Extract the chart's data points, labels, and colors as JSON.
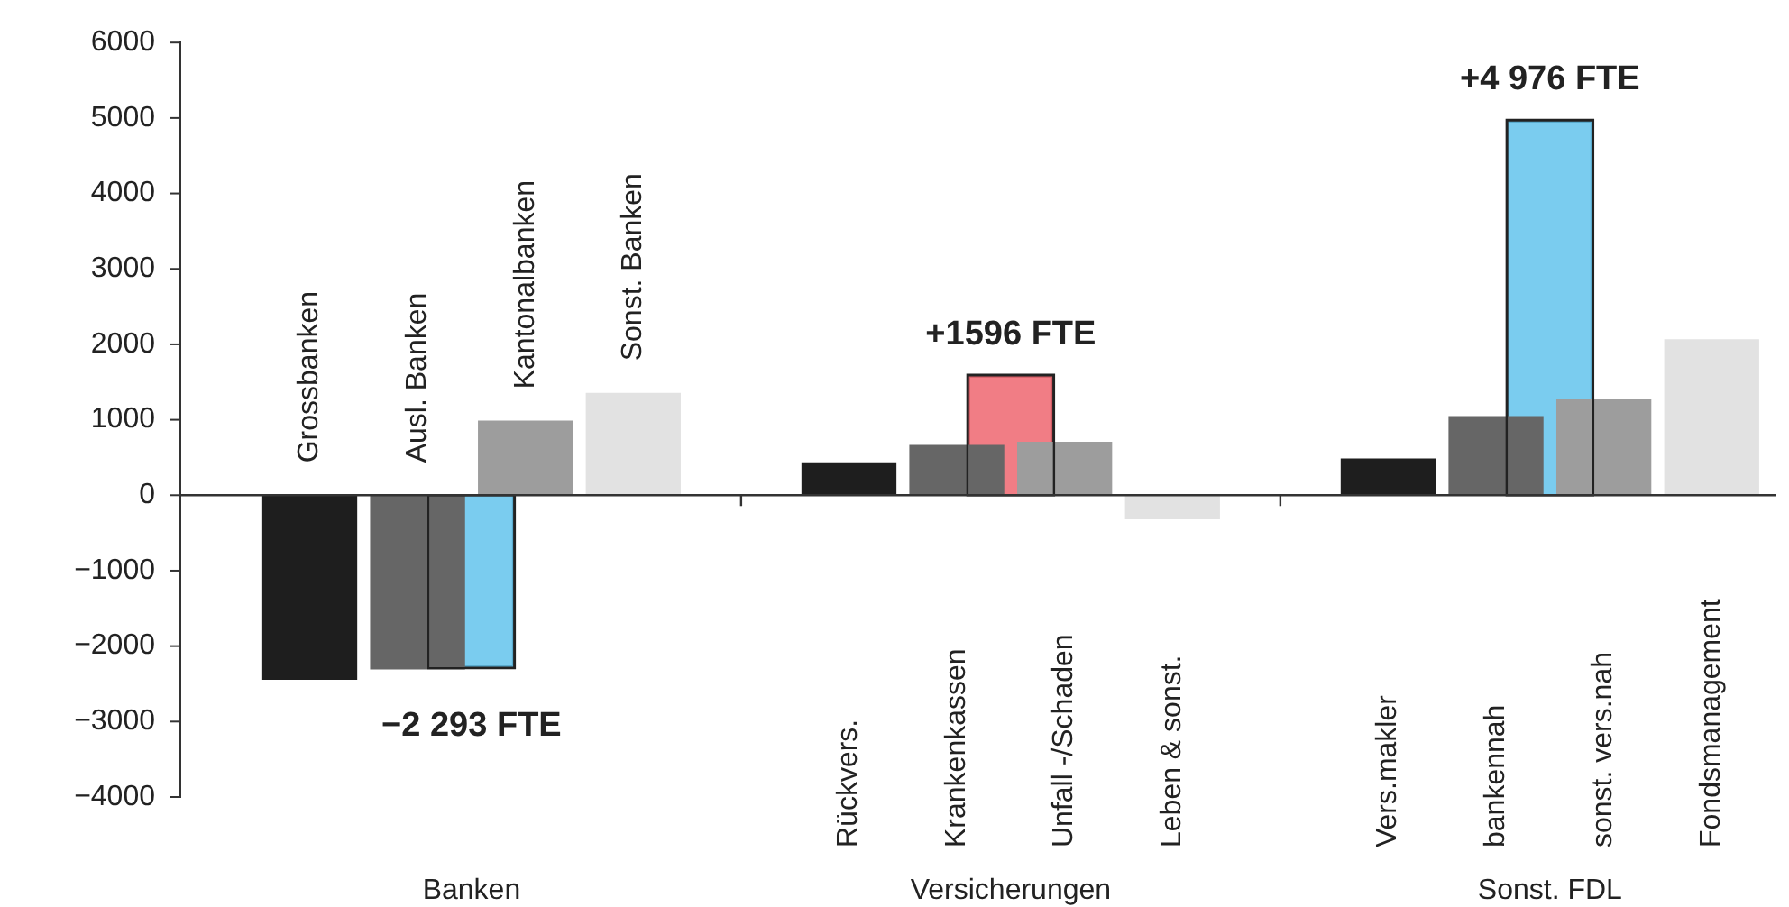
{
  "chart_data": {
    "type": "bar",
    "categories": [
      "Grossbanken",
      "Ausl. Banken",
      "Kantonalbanken",
      "Sonst. Banken",
      null,
      "Rückvers.",
      "Krankenkassen",
      "Unfall -/Schaden",
      "Leben & sonst.",
      null,
      "Vers.makler",
      "bankennah",
      "sonst. vers.nah",
      "Fondsmanagement"
    ],
    "series": [
      {
        "colors": [
          "#1e1e1e",
          "#666666",
          "#9d9d9d",
          "#e2e2e2",
          null,
          "#1e1e1e",
          "#666666",
          "#9d9d9d",
          "#e2e2e2",
          null,
          "#1e1e1e",
          "#666666",
          "#9d9d9d",
          "#e2e2e2"
        ],
        "values": [
          -2440,
          -2300,
          980,
          1350,
          null,
          430,
          660,
          700,
          -310,
          null,
          480,
          1040,
          1270,
          2060
        ]
      },
      {
        "colors": [
          null,
          "#63c3ec",
          null,
          null,
          null,
          null,
          "#ee6670",
          null,
          null,
          null,
          null,
          "#63c3ec",
          null,
          null
        ],
        "values": [
          null,
          -2293,
          null,
          null,
          null,
          null,
          1596,
          null,
          null,
          null,
          null,
          4976,
          null,
          null
        ],
        "value_labels": [
          null,
          "−2 293 FTE",
          null,
          null,
          null,
          null,
          "+1596 FTE",
          null,
          null,
          null,
          null,
          "+4 976 FTE",
          null,
          null
        ]
      }
    ],
    "ylim": [
      -4000,
      6000
    ],
    "yticks": [
      {
        "value": -4000,
        "label": "−4000"
      },
      {
        "value": -3000,
        "label": "−3000"
      },
      {
        "value": -2000,
        "label": "−2000"
      },
      {
        "value": -1000,
        "label": "−1000"
      },
      0,
      1000,
      2000,
      3000,
      4000,
      5000,
      6000
    ],
    "annotations": [
      "Banken",
      "Versicherungen",
      "Sonst. FDL"
    ],
    "ref_lines": [
      {
        "axis": "y",
        "value": 0,
        "color": "#333333"
      }
    ],
    "grid": false,
    "legend": false
  }
}
